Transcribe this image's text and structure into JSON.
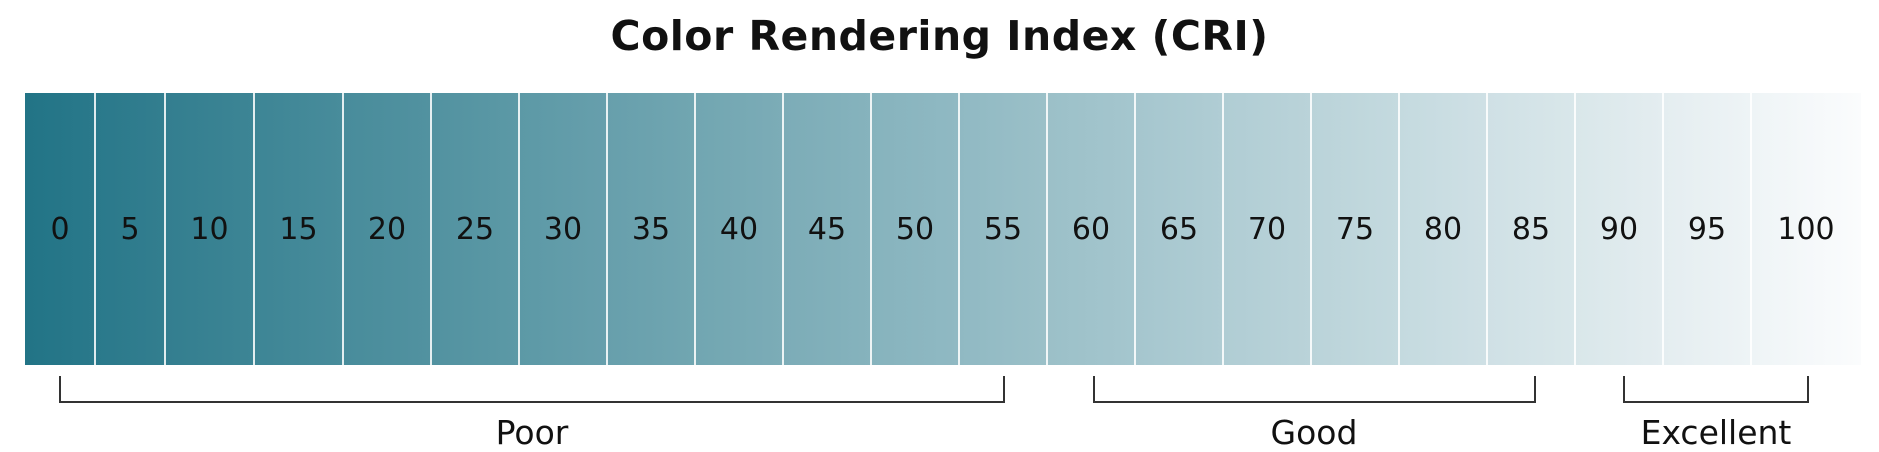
{
  "title": "Color Rendering Index (CRI)",
  "scale": {
    "values": [
      "0",
      "5",
      "10",
      "15",
      "20",
      "25",
      "30",
      "35",
      "40",
      "45",
      "50",
      "55",
      "60",
      "65",
      "70",
      "75",
      "80",
      "85",
      "90",
      "95",
      "100"
    ],
    "color_start": "#227486",
    "color_end": "#fbfcfd",
    "divider_color": "#ffffff"
  },
  "ranges": [
    {
      "label": "Poor",
      "from": "0",
      "to": "55"
    },
    {
      "label": "Good",
      "from": "60",
      "to": "85"
    },
    {
      "label": "Excellent",
      "from": "90",
      "to": "100"
    }
  ],
  "bracket_color": "#333333"
}
